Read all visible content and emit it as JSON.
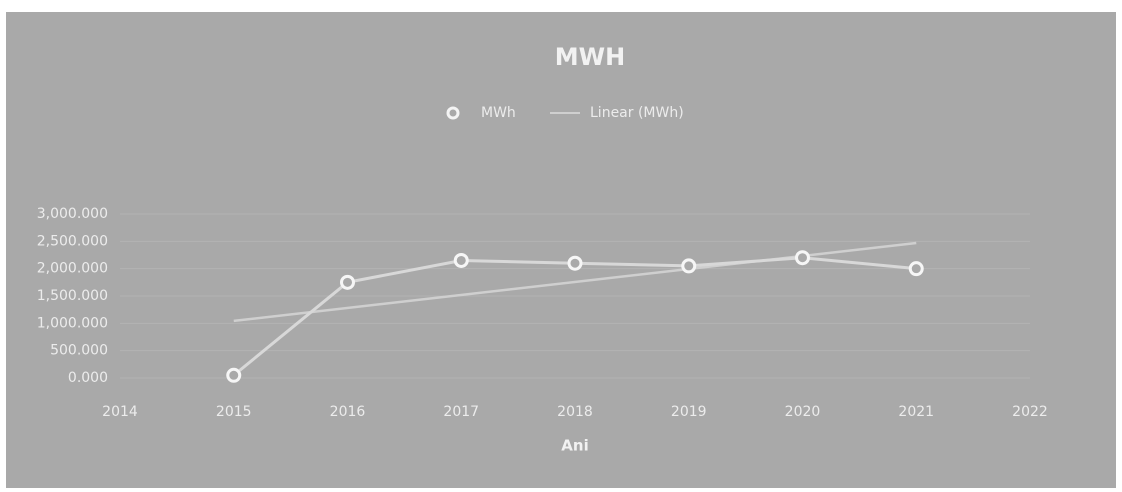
{
  "chart_data": {
    "type": "line",
    "title": "MWH",
    "x_label": "Ani",
    "x": [
      2015,
      2016,
      2017,
      2018,
      2019,
      2020,
      2021
    ],
    "series": [
      {
        "name": "MWh",
        "color": "#d8d8d8",
        "values": [
          50,
          1750,
          2150,
          2100,
          2050,
          2200,
          2000
        ]
      }
    ],
    "trendline": {
      "name": "Linear (MWh)",
      "color": "#cfcfcf"
    },
    "xlim": [
      2014,
      2022
    ],
    "xticks": [
      2014,
      2015,
      2016,
      2017,
      2018,
      2019,
      2020,
      2021,
      2022
    ],
    "ylim": [
      0,
      3000
    ],
    "yticks": [
      {
        "value": 0,
        "label": "0.000"
      },
      {
        "value": 500,
        "label": "500.000"
      },
      {
        "value": 1000,
        "label": "1,000.000"
      },
      {
        "value": 1500,
        "label": "1,500.000"
      },
      {
        "value": 2000,
        "label": "2,000.000"
      },
      {
        "value": 2500,
        "label": "2,500.000"
      },
      {
        "value": 3000,
        "label": "3,000.000"
      }
    ],
    "grid": true,
    "legend": "top"
  }
}
